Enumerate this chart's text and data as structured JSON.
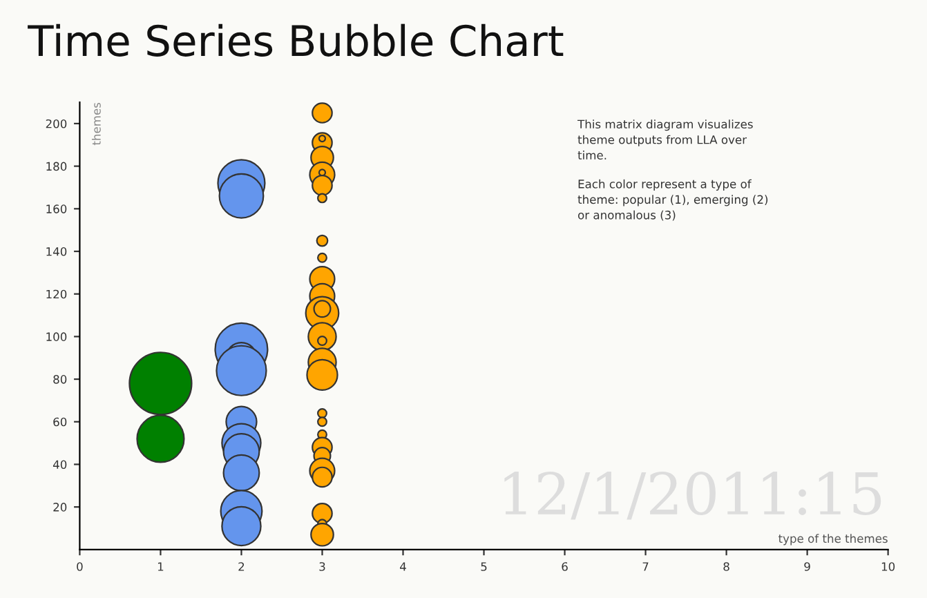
{
  "chart_data": {
    "type": "bubble",
    "title": "Time Series Bubble Chart",
    "xlabel": "type of the themes",
    "ylabel": "themes",
    "annotations": [
      "This matrix diagram visualizes\ntheme outputs from LLA over\ntime.",
      "Each color represent a type of\ntheme: popular (1), emerging (2)\nor anomalous (3)",
      "12/1/2011:15"
    ],
    "xlim": [
      0,
      10
    ],
    "xticks": [
      0,
      1,
      2,
      3,
      4,
      5,
      6,
      7,
      8,
      9,
      10
    ],
    "ylim": [
      0,
      210
    ],
    "yticks": [
      20,
      40,
      60,
      80,
      100,
      120,
      140,
      160,
      180,
      200
    ],
    "grid": false,
    "legend": false,
    "series": [
      {
        "color": "#008000",
        "x": [
          1,
          1
        ],
        "values": [
          78,
          52
        ],
        "sizes": [
          1,
          0.57
        ]
      },
      {
        "color": "#6495ed",
        "x": [
          2,
          2,
          2,
          2,
          2,
          2,
          2,
          2,
          2,
          2,
          2
        ],
        "values": [
          172,
          166,
          94,
          90,
          84,
          60,
          50,
          46,
          36,
          18,
          11
        ],
        "sizes": [
          0.57,
          0.5,
          0.71,
          0.24,
          0.64,
          0.24,
          0.39,
          0.33,
          0.33,
          0.44,
          0.39
        ]
      },
      {
        "color": "#ffa500",
        "x": [
          3,
          3,
          3,
          3,
          3,
          3,
          3,
          3,
          3,
          3,
          3,
          3,
          3,
          3,
          3,
          3,
          3,
          3,
          3,
          3,
          3,
          3,
          3,
          3,
          3,
          3,
          3,
          3
        ],
        "values": [
          205,
          191,
          193,
          184,
          176,
          177,
          171,
          165,
          145,
          137,
          127,
          119,
          111,
          113,
          100,
          98,
          88,
          82,
          64,
          60,
          54,
          48,
          44,
          37,
          34,
          17,
          12,
          7
        ],
        "sizes": [
          0.1,
          0.1,
          0.01,
          0.13,
          0.16,
          0.01,
          0.1,
          0.02,
          0.03,
          0.02,
          0.16,
          0.16,
          0.28,
          0.07,
          0.2,
          0.02,
          0.2,
          0.24,
          0.02,
          0.02,
          0.02,
          0.1,
          0.07,
          0.16,
          0.1,
          0.1,
          0.02,
          0.13
        ]
      }
    ]
  }
}
